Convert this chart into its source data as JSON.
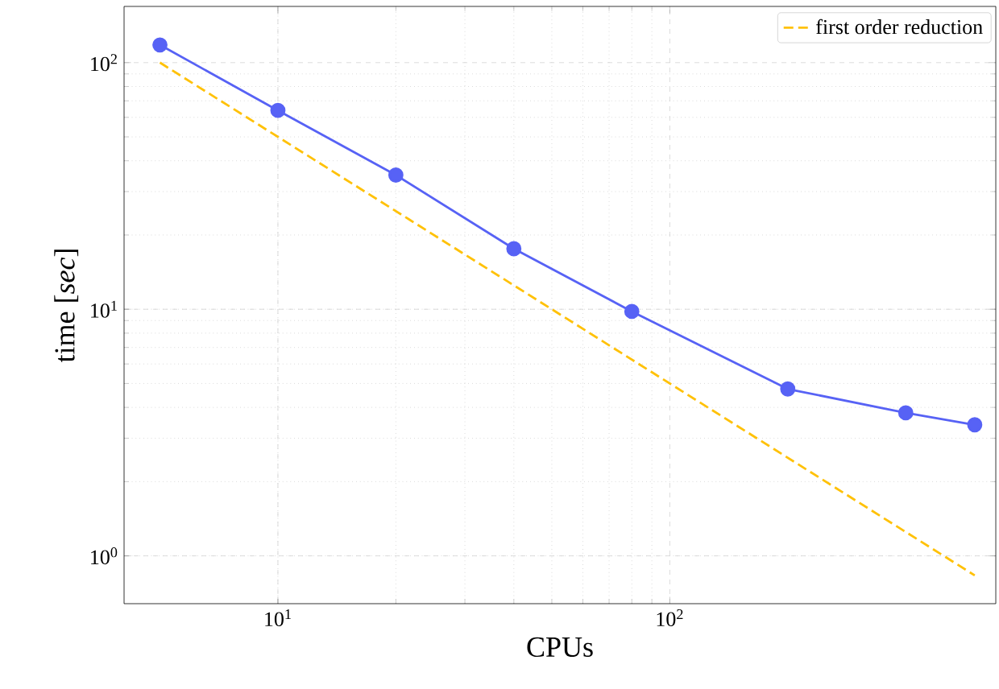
{
  "chart_data": {
    "type": "line",
    "xlabel": "CPUs",
    "ylabel": "time [*sec*]",
    "log": "xy",
    "grid": true,
    "legend": "top right",
    "xlim": [
      4.05,
      679
    ],
    "ylim": [
      0.64,
      169
    ],
    "xticks": [
      {
        "value": 10,
        "label": "10$^{1}$"
      },
      {
        "value": 100,
        "label": "10$^{2}$"
      }
    ],
    "yticks": [
      {
        "value": 1,
        "label": "10$^{0}$"
      },
      {
        "value": 10,
        "label": "10$^{1}$"
      },
      {
        "value": 100,
        "label": "10$^{2}$"
      }
    ],
    "series": [
      {
        "color": "#5762f5",
        "marker": "circle",
        "line_style": "solid",
        "x": [
          5,
          10,
          20,
          40,
          80,
          200,
          400,
          600
        ],
        "values": [
          118,
          64,
          35,
          17.6,
          9.8,
          4.75,
          3.8,
          3.4
        ]
      },
      {
        "name": "first order reduction",
        "color": "#ffc107",
        "marker": "none",
        "line_style": "dashed",
        "x": [
          5,
          600
        ],
        "values": [
          100,
          0.8333
        ]
      }
    ]
  }
}
